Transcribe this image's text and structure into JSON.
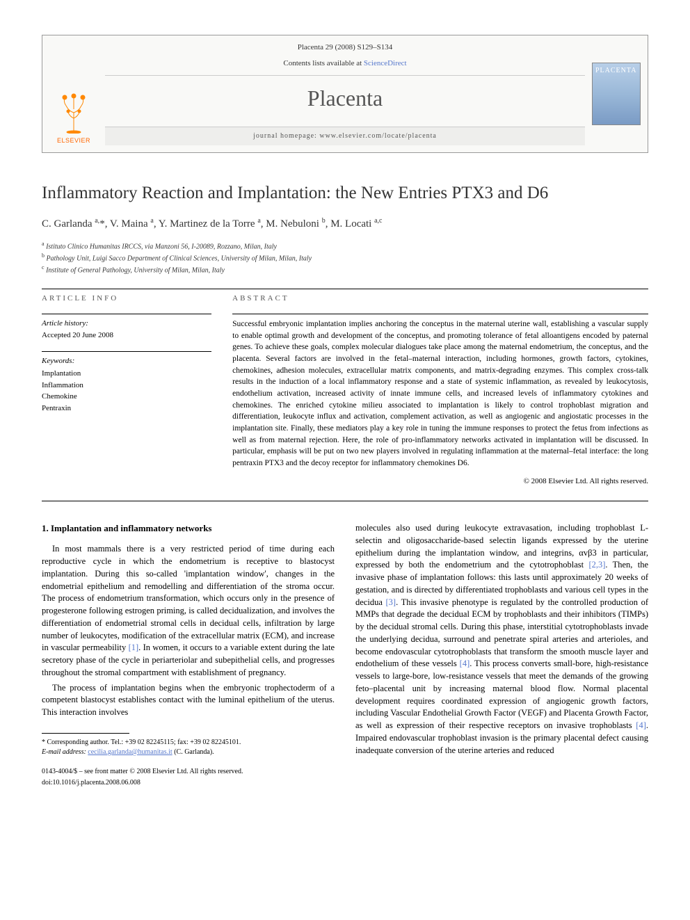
{
  "header": {
    "citation": "Placenta 29 (2008) S129–S134",
    "contents_prefix": "Contents lists available at ",
    "contents_link": "ScienceDirect",
    "journal": "Placenta",
    "homepage_prefix": "journal homepage: ",
    "homepage_url": "www.elsevier.com/locate/placenta",
    "publisher": "ELSEVIER",
    "cover_label": "PLACENTA"
  },
  "article": {
    "title": "Inflammatory Reaction and Implantation: the New Entries PTX3 and D6",
    "authors_html": "C. Garlanda <sup>a,</sup>*, V. Maina <sup>a</sup>, Y. Martinez de la Torre <sup>a</sup>, M. Nebuloni <sup>b</sup>, M. Locati <sup>a,c</sup>",
    "affiliations": [
      {
        "sup": "a",
        "text": "Istituto Clinico Humanitas IRCCS, via Manzoni 56, I-20089, Rozzano, Milan, Italy"
      },
      {
        "sup": "b",
        "text": "Pathology Unit, Luigi Sacco Department of Clinical Sciences, University of Milan, Milan, Italy"
      },
      {
        "sup": "c",
        "text": "Institute of General Pathology, University of Milan, Milan, Italy"
      }
    ]
  },
  "info": {
    "article_info_label": "ARTICLE INFO",
    "abstract_label": "ABSTRACT",
    "history_label": "Article history:",
    "history_text": "Accepted 20 June 2008",
    "keywords_label": "Keywords:",
    "keywords": [
      "Implantation",
      "Inflammation",
      "Chemokine",
      "Pentraxin"
    ]
  },
  "abstract": "Successful embryonic implantation implies anchoring the conceptus in the maternal uterine wall, establishing a vascular supply to enable optimal growth and development of the conceptus, and promoting tolerance of fetal alloantigens encoded by paternal genes. To achieve these goals, complex molecular dialogues take place among the maternal endometrium, the conceptus, and the placenta. Several factors are involved in the fetal–maternal interaction, including hormones, growth factors, cytokines, chemokines, adhesion molecules, extracellular matrix components, and matrix-degrading enzymes. This complex cross-talk results in the induction of a local inflammatory response and a state of systemic inflammation, as revealed by leukocytosis, endothelium activation, increased activity of innate immune cells, and increased levels of inflammatory cytokines and chemokines. The enriched cytokine milieu associated to implantation is likely to control trophoblast migration and differentiation, leukocyte influx and activation, complement activation, as well as angiogenic and angiostatic processes in the implantation site. Finally, these mediators play a key role in tuning the immune responses to protect the fetus from infections as well as from maternal rejection. Here, the role of pro-inflammatory networks activated in implantation will be discussed. In particular, emphasis will be put on two new players involved in regulating inflammation at the maternal–fetal interface: the long pentraxin PTX3 and the decoy receptor for inflammatory chemokines D6.",
  "copyright": "© 2008 Elsevier Ltd. All rights reserved.",
  "body": {
    "heading": "1. Implantation and inflammatory networks",
    "col1_p1": "In most mammals there is a very restricted period of time during each reproductive cycle in which the endometrium is receptive to blastocyst implantation. During this so-called 'implantation window', changes in the endometrial epithelium and remodelling and differentiation of the stroma occur. The process of endometrium transformation, which occurs only in the presence of progesterone following estrogen priming, is called decidualization, and involves the differentiation of endometrial stromal cells in decidual cells, infiltration by large number of leukocytes, modification of the extracellular matrix (ECM), and increase in vascular permeability [1]. In women, it occurs to a variable extent during the late secretory phase of the cycle in periarteriolar and subepithelial cells, and progresses throughout the stromal compartment with establishment of pregnancy.",
    "col1_p2": "The process of implantation begins when the embryonic trophectoderm of a competent blastocyst establishes contact with the luminal epithelium of the uterus. This interaction involves",
    "col2_p1": "molecules also used during leukocyte extravasation, including trophoblast L-selectin and oligosaccharide-based selectin ligands expressed by the uterine epithelium during the implantation window, and integrins, αvβ3 in particular, expressed by both the endometrium and the cytotrophoblast [2,3]. Then, the invasive phase of implantation follows: this lasts until approximately 20 weeks of gestation, and is directed by differentiated trophoblasts and various cell types in the decidua [3]. This invasive phenotype is regulated by the controlled production of MMPs that degrade the decidual ECM by trophoblasts and their inhibitors (TIMPs) by the decidual stromal cells. During this phase, interstitial cytotrophoblasts invade the underlying decidua, surround and penetrate spiral arteries and arterioles, and become endovascular cytotrophoblasts that transform the smooth muscle layer and endothelium of these vessels [4]. This process converts small-bore, high-resistance vessels to large-bore, low-resistance vessels that meet the demands of the growing feto–placental unit by increasing maternal blood flow. Normal placental development requires coordinated expression of angiogenic growth factors, including Vascular Endothelial Growth Factor (VEGF) and Placenta Growth Factor, as well as expression of their respective receptors on invasive trophoblasts [4]. Impaired endovascular trophoblast invasion is the primary placental defect causing inadequate conversion of the uterine arteries and reduced"
  },
  "footnote": {
    "corr": "* Corresponding author. Tel.: +39 02 82245115; fax: +39 02 82245101.",
    "email_label": "E-mail address:",
    "email": "cecilia.garlanda@humanitas.it",
    "email_suffix": " (C. Garlanda)."
  },
  "footer": {
    "line1": "0143-4004/$ – see front matter © 2008 Elsevier Ltd. All rights reserved.",
    "line2": "doi:10.1016/j.placenta.2008.06.008"
  }
}
